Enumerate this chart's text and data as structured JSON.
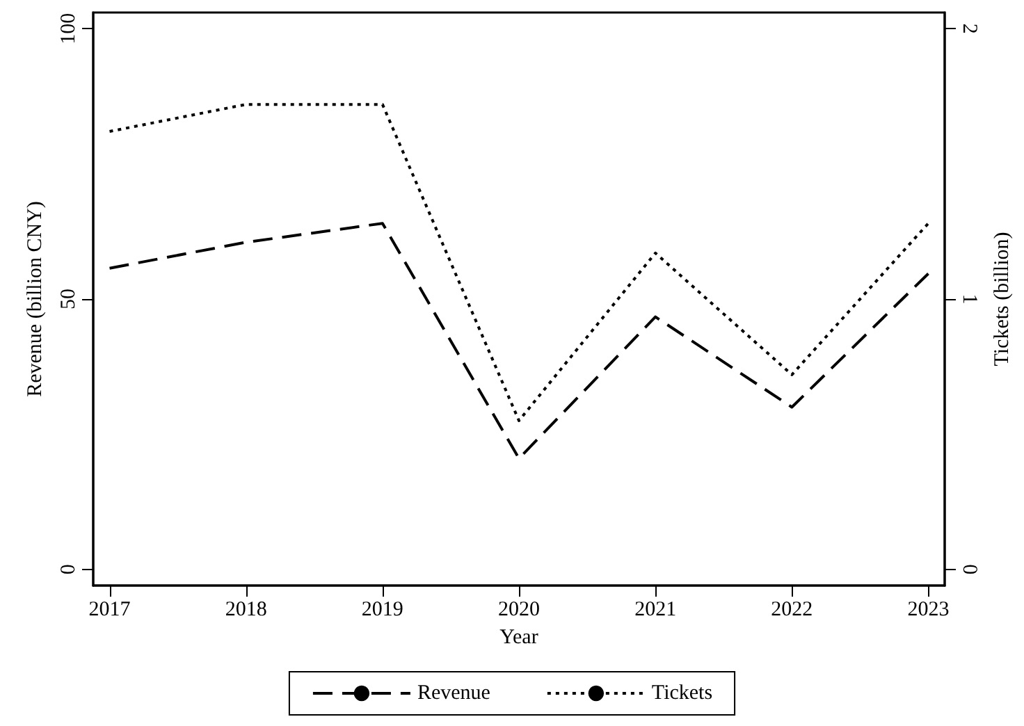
{
  "chart_data": {
    "type": "line",
    "xlabel": "Year",
    "ylabel": "Revenue (billion CNY)",
    "y2label": "Tickets (billion)",
    "x": [
      2017,
      2018,
      2019,
      2020,
      2021,
      2022,
      2023
    ],
    "xlim": [
      2016.88,
      2023.12
    ],
    "xticks": [
      2017,
      2018,
      2019,
      2020,
      2021,
      2022,
      2023
    ],
    "ylim": [
      -3,
      103
    ],
    "yticks": [
      0,
      50,
      100
    ],
    "y2lim": [
      -0.06,
      2.06
    ],
    "y2ticks": [
      0,
      1,
      2
    ],
    "series": [
      {
        "name": "Revenue",
        "color": "#000000",
        "line_style": "dashed",
        "values": [
          55.7,
          60.5,
          64.0,
          20.5,
          46.7,
          30.0,
          54.7
        ]
      },
      {
        "name": "Tickets",
        "color": "#000000",
        "line_style": "dotted",
        "axis": "y2",
        "values": [
          1.62,
          1.72,
          1.72,
          0.55,
          1.17,
          0.72,
          1.28
        ]
      }
    ],
    "marker": "none",
    "grid": false,
    "legend": "bottom"
  }
}
